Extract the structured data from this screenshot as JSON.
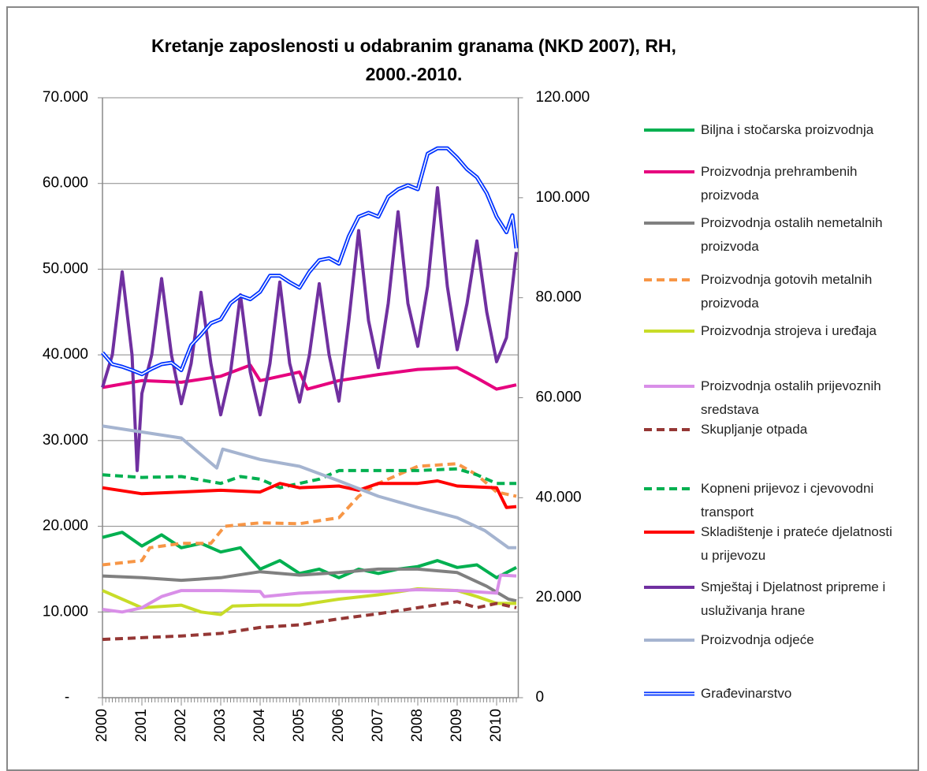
{
  "chart_data": {
    "type": "line",
    "title": "Kretanje zaposlenosti u odabranim  granama (NKD 2007), RH, 2000.-2010.",
    "xlim": [
      2000,
      2010.55
    ],
    "xticks": [
      2000,
      2001,
      2002,
      2003,
      2004,
      2005,
      2006,
      2007,
      2008,
      2009,
      2010
    ],
    "ylim": [
      0,
      70000
    ],
    "yticks": [
      {
        "value": 0,
        "label": "-"
      },
      {
        "value": 10000,
        "label": "10.000"
      },
      {
        "value": 20000,
        "label": "20.000"
      },
      {
        "value": 30000,
        "label": "30.000"
      },
      {
        "value": 40000,
        "label": "40.000"
      },
      {
        "value": 50000,
        "label": "50.000"
      },
      {
        "value": 60000,
        "label": "60.000"
      },
      {
        "value": 70000,
        "label": "70.000"
      }
    ],
    "y2lim": [
      0,
      120000
    ],
    "y2ticks": [
      0,
      {
        "value": 20000,
        "label": "20.000"
      },
      {
        "value": 40000,
        "label": "40.000"
      },
      {
        "value": 60000,
        "label": "60.000"
      },
      {
        "value": 80000,
        "label": "80.000"
      },
      {
        "value": 100000,
        "label": "100.000"
      },
      {
        "value": 120000,
        "label": "120.000"
      }
    ],
    "grid": true,
    "legend": "right",
    "series": [
      {
        "name": "Biljna i stočarska proizvodnja",
        "color": "#00b050",
        "style": "solid",
        "x": [
          2000,
          2000.5,
          2001,
          2001.5,
          2002,
          2002.5,
          2003,
          2003.5,
          2004,
          2004.5,
          2005,
          2005.5,
          2006,
          2006.5,
          2007,
          2007.5,
          2008,
          2008.5,
          2009,
          2009.5,
          2010,
          2010.5
        ],
        "values": [
          18700,
          19300,
          17700,
          19000,
          17500,
          18000,
          17000,
          17500,
          15000,
          16000,
          14500,
          15000,
          14000,
          15000,
          14500,
          15000,
          15300,
          16000,
          15200,
          15500,
          14000,
          15200
        ]
      },
      {
        "name": "Proizvodnja prehrambenih proizvoda",
        "color": "#e6007e",
        "style": "solid",
        "x": [
          2000,
          2001,
          2002,
          2003,
          2003.75,
          2004,
          2005,
          2005.2,
          2006,
          2007,
          2008,
          2009,
          2009.5,
          2010,
          2010.5
        ],
        "values": [
          36200,
          37000,
          36800,
          37500,
          38800,
          37000,
          38000,
          36000,
          37000,
          37700,
          38300,
          38500,
          37300,
          36000,
          36500
        ]
      },
      {
        "name": "Proizvodnja ostalih nemetalnih proizvoda",
        "color": "#808080",
        "style": "solid",
        "x": [
          2000,
          2001,
          2002,
          2003,
          2004,
          2005,
          2006,
          2007,
          2008,
          2009,
          2009.75,
          2010.3,
          2010.5
        ],
        "values": [
          14200,
          14000,
          13700,
          14000,
          14700,
          14300,
          14600,
          15000,
          15000,
          14600,
          13000,
          11500,
          11300
        ]
      },
      {
        "name": "Proizvodnja gotovih metalnih proizvoda",
        "color": "#f79646",
        "style": "dashed",
        "x": [
          2000,
          2001,
          2001.2,
          2002,
          2002.75,
          2003.1,
          2004,
          2005,
          2006,
          2006.5,
          2007,
          2007.5,
          2008,
          2009,
          2009.5,
          2010,
          2010.5
        ],
        "values": [
          15500,
          16000,
          17500,
          18000,
          18000,
          20000,
          20400,
          20300,
          21000,
          23500,
          25000,
          26000,
          27000,
          27300,
          26000,
          24000,
          23500
        ]
      },
      {
        "name": "Proizvodnja strojeva i uređaja",
        "color": "#c8dc28",
        "style": "solid",
        "x": [
          2000,
          2000.5,
          2001,
          2002,
          2002.5,
          2003,
          2003.3,
          2004,
          2005,
          2006,
          2007,
          2008,
          2009,
          2009.5,
          2010,
          2010.5
        ],
        "values": [
          12500,
          11500,
          10500,
          10800,
          10000,
          9700,
          10700,
          10800,
          10800,
          11500,
          12000,
          12700,
          12500,
          11800,
          11000,
          11000
        ]
      },
      {
        "name": "Proizvodnja ostalih prijevoznih sredstava",
        "color": "#d98fe8",
        "style": "solid",
        "x": [
          2000,
          2000.5,
          2001,
          2001.5,
          2002,
          2003,
          2004,
          2004.1,
          2005,
          2006,
          2007,
          2008,
          2009,
          2010,
          2010.1,
          2010.5
        ],
        "values": [
          10300,
          10000,
          10500,
          11800,
          12500,
          12500,
          12400,
          11800,
          12200,
          12400,
          12400,
          12600,
          12500,
          12200,
          14300,
          14200
        ]
      },
      {
        "name": "Skupljanje otpada",
        "color": "#953735",
        "style": "dashed",
        "x": [
          2000,
          2001,
          2002,
          2003,
          2004,
          2005,
          2006,
          2007,
          2008,
          2009,
          2009.5,
          2010,
          2010.5
        ],
        "values": [
          6800,
          7000,
          7200,
          7500,
          8200,
          8500,
          9200,
          9800,
          10500,
          11200,
          10500,
          11000,
          10500
        ]
      },
      {
        "name": "Kopneni prijevoz i cjevovodni transport",
        "color": "#00b050",
        "style": "dashed",
        "x": [
          2000,
          2001,
          2002,
          2003,
          2003.5,
          2004,
          2004.5,
          2005,
          2005.5,
          2006,
          2007,
          2008,
          2009,
          2009.5,
          2010,
          2010.5
        ],
        "values": [
          26000,
          25700,
          25800,
          25000,
          25800,
          25500,
          24500,
          25000,
          25500,
          26500,
          26500,
          26500,
          26700,
          26000,
          25000,
          25000
        ]
      },
      {
        "name": "Skladištenje i prateće djelatnosti u prijevozu",
        "color": "#ff0000",
        "style": "solid",
        "x": [
          2000,
          2001,
          2002,
          2003,
          2004,
          2004.5,
          2005,
          2006,
          2006.5,
          2007,
          2008,
          2008.5,
          2009,
          2010,
          2010.25,
          2010.5
        ],
        "values": [
          24500,
          23800,
          24000,
          24200,
          24000,
          25000,
          24500,
          24700,
          24200,
          25000,
          25000,
          25300,
          24700,
          24500,
          22200,
          22300
        ]
      },
      {
        "name": "Smještaj i Djelatnost pripreme i usluživanja hrane",
        "color": "#7030a0",
        "style": "solid",
        "x": [
          2000,
          2000.25,
          2000.5,
          2000.75,
          2000.88,
          2001,
          2001.25,
          2001.5,
          2001.75,
          2002,
          2002.25,
          2002.5,
          2002.75,
          2003,
          2003.25,
          2003.5,
          2003.75,
          2004,
          2004.25,
          2004.5,
          2004.75,
          2005,
          2005.25,
          2005.5,
          2005.75,
          2006,
          2006.25,
          2006.5,
          2006.75,
          2007,
          2007.25,
          2007.5,
          2007.75,
          2008,
          2008.25,
          2008.5,
          2008.75,
          2009,
          2009.25,
          2009.5,
          2009.75,
          2010,
          2010.25,
          2010.5
        ],
        "values": [
          36200,
          40000,
          49700,
          40000,
          26500,
          35500,
          40000,
          48900,
          40000,
          34300,
          39000,
          47300,
          39000,
          33000,
          38000,
          47000,
          38000,
          33000,
          39000,
          48500,
          39000,
          34500,
          40000,
          48300,
          40000,
          34600,
          44000,
          54500,
          44000,
          38500,
          46000,
          56700,
          46000,
          41000,
          48000,
          59500,
          48000,
          40600,
          46000,
          53300,
          45000,
          39200,
          42000,
          52000
        ]
      },
      {
        "name": "Proizvodnja odjeće",
        "color": "#a5b4d0",
        "style": "solid",
        "x": [
          2000,
          2001,
          2002,
          2002.9,
          2003.05,
          2004,
          2005,
          2006,
          2007,
          2008,
          2009,
          2009.7,
          2010.3,
          2010.5
        ],
        "values": [
          31700,
          31000,
          30300,
          26800,
          29000,
          27800,
          27000,
          25300,
          23500,
          22200,
          21000,
          19500,
          17500,
          17500
        ]
      },
      {
        "name": "Građevinarstvo",
        "color": "#0033ff",
        "style": "double",
        "axis": "y2",
        "x": [
          2000,
          2000.25,
          2000.5,
          2000.75,
          2001,
          2001.25,
          2001.5,
          2001.75,
          2002,
          2002.25,
          2002.5,
          2002.75,
          2003,
          2003.25,
          2003.5,
          2003.75,
          2004,
          2004.25,
          2004.5,
          2004.75,
          2005,
          2005.25,
          2005.5,
          2005.75,
          2006,
          2006.25,
          2006.5,
          2006.75,
          2007,
          2007.25,
          2007.5,
          2007.75,
          2008,
          2008.25,
          2008.5,
          2008.75,
          2009,
          2009.25,
          2009.5,
          2009.75,
          2010,
          2010.25,
          2010.4,
          2010.5
        ],
        "values": [
          69000,
          66700,
          66200,
          65500,
          64700,
          65800,
          66700,
          67000,
          65500,
          70500,
          72600,
          74900,
          75700,
          78900,
          80400,
          79700,
          81200,
          84400,
          84400,
          83100,
          82000,
          85200,
          87500,
          87900,
          86800,
          92300,
          96200,
          97000,
          96200,
          100200,
          101700,
          102500,
          101700,
          108800,
          109900,
          109900,
          108000,
          105700,
          104100,
          100900,
          96200,
          93100,
          96500,
          89900
        ]
      }
    ]
  }
}
